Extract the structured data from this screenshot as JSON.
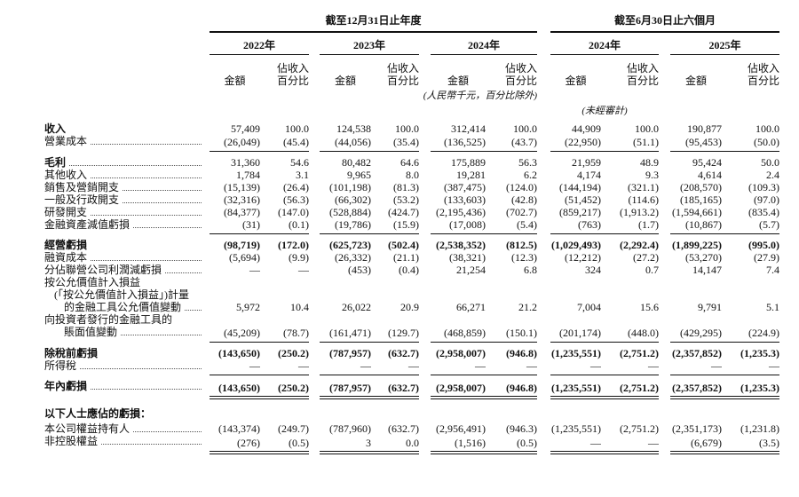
{
  "header": {
    "groups": [
      {
        "title": "截至12月31日止年度",
        "years": [
          "2022年",
          "2023年",
          "2024年"
        ]
      },
      {
        "title": "截至6月30日止六個月",
        "years": [
          "2024年",
          "2025年"
        ]
      }
    ],
    "amount_label": "金額",
    "pct_label": "佔收入\n百分比",
    "unit_note": "(人民幣千元，百分比除外)",
    "unaudited_note": "(未經審計)"
  },
  "table": {
    "columns": [
      "fy2022-amount",
      "fy2022-pct",
      "fy2023-amount",
      "fy2023-pct",
      "fy2024-amount",
      "fy2024-pct",
      "h1-2024-amount",
      "h1-2024-pct",
      "h1-2025-amount",
      "h1-2025-pct"
    ],
    "rows": [
      {
        "id": "revenue",
        "label": "收入",
        "label_indent": 0,
        "pre_lines": [],
        "leader": false,
        "label_bold": true,
        "values_bold": false,
        "underline": "none",
        "gap": 6,
        "values": [
          "57,409",
          "100.0",
          "124,538",
          "100.0",
          "312,414",
          "100.0",
          "44,909",
          "100.0",
          "190,877",
          "100.0"
        ]
      },
      {
        "id": "cost-of-sales",
        "label": "營業成本",
        "label_indent": 0,
        "pre_lines": [],
        "leader": true,
        "label_bold": false,
        "values_bold": false,
        "underline": "single",
        "gap": 0,
        "values": [
          "(26,049)",
          "(45.4)",
          "(44,056)",
          "(35.4)",
          "(136,525)",
          "(43.7)",
          "(22,950)",
          "(51.1)",
          "(95,453)",
          "(50.0)"
        ]
      },
      {
        "id": "gross-profit",
        "label": "毛利",
        "label_indent": 0,
        "pre_lines": [],
        "leader": true,
        "label_bold": true,
        "values_bold": false,
        "underline": "none",
        "gap": 5,
        "values": [
          "31,360",
          "54.6",
          "80,482",
          "64.6",
          "175,889",
          "56.3",
          "21,959",
          "48.9",
          "95,424",
          "50.0"
        ]
      },
      {
        "id": "other-income",
        "label": "其他收入",
        "label_indent": 0,
        "pre_lines": [],
        "leader": true,
        "label_bold": false,
        "values_bold": false,
        "underline": "none",
        "gap": 0,
        "values": [
          "1,784",
          "3.1",
          "9,965",
          "8.0",
          "19,281",
          "6.2",
          "4,174",
          "9.3",
          "4,614",
          "2.4"
        ]
      },
      {
        "id": "selling-marketing-expenses",
        "label": "銷售及營銷開支",
        "label_indent": 0,
        "pre_lines": [],
        "leader": true,
        "label_bold": false,
        "values_bold": false,
        "underline": "none",
        "gap": 0,
        "values": [
          "(15,139)",
          "(26.4)",
          "(101,198)",
          "(81.3)",
          "(387,475)",
          "(124.0)",
          "(144,194)",
          "(321.1)",
          "(208,570)",
          "(109.3)"
        ]
      },
      {
        "id": "general-admin-expenses",
        "label": "一般及行政開支",
        "label_indent": 0,
        "pre_lines": [],
        "leader": true,
        "label_bold": false,
        "values_bold": false,
        "underline": "none",
        "gap": 0,
        "values": [
          "(32,316)",
          "(56.3)",
          "(66,302)",
          "(53.2)",
          "(133,603)",
          "(42.8)",
          "(51,452)",
          "(114.6)",
          "(185,165)",
          "(97.0)"
        ]
      },
      {
        "id": "rd-expenses",
        "label": "研發開支",
        "label_indent": 0,
        "pre_lines": [],
        "leader": true,
        "label_bold": false,
        "values_bold": false,
        "underline": "none",
        "gap": 0,
        "values": [
          "(84,377)",
          "(147.0)",
          "(528,884)",
          "(424.7)",
          "(2,195,436)",
          "(702.7)",
          "(859,217)",
          "(1,913.2)",
          "(1,594,661)",
          "(835.4)"
        ]
      },
      {
        "id": "impairment-losses-financial-assets",
        "label": "金融資產減值虧損",
        "label_indent": 0,
        "pre_lines": [],
        "leader": true,
        "label_bold": false,
        "values_bold": false,
        "underline": "single",
        "gap": 0,
        "values": [
          "(31)",
          "(0.1)",
          "(19,786)",
          "(15.9)",
          "(17,008)",
          "(5.4)",
          "(763)",
          "(1.7)",
          "(10,867)",
          "(5.7)"
        ]
      },
      {
        "id": "operating-loss",
        "label": "經營虧損",
        "label_indent": 0,
        "pre_lines": [],
        "leader": false,
        "label_bold": true,
        "values_bold": true,
        "underline": "none",
        "gap": 5,
        "values": [
          "(98,719)",
          "(172.0)",
          "(625,723)",
          "(502.4)",
          "(2,538,352)",
          "(812.5)",
          "(1,029,493)",
          "(2,292.4)",
          "(1,899,225)",
          "(995.0)"
        ]
      },
      {
        "id": "finance-costs",
        "label": "融資成本",
        "label_indent": 0,
        "pre_lines": [],
        "leader": true,
        "label_bold": false,
        "values_bold": false,
        "underline": "none",
        "gap": 0,
        "values": [
          "(5,694)",
          "(9.9)",
          "(26,332)",
          "(21.1)",
          "(38,321)",
          "(12.3)",
          "(12,212)",
          "(27.2)",
          "(53,270)",
          "(27.9)"
        ]
      },
      {
        "id": "share-of-associates",
        "label": "分佔聯營公司利潤減虧損",
        "label_indent": 0,
        "pre_lines": [],
        "leader": true,
        "label_bold": false,
        "values_bold": false,
        "underline": "none",
        "gap": 0,
        "values": [
          "—",
          "—",
          "(453)",
          "(0.4)",
          "21,254",
          "6.8",
          "324",
          "0.7",
          "14,147",
          "7.4"
        ]
      },
      {
        "id": "fvtpl-instruments-fair-value-change",
        "label": "的金融工具公允價值變動",
        "label_indent": 2,
        "pre_lines": [
          {
            "text": "按公允價值計入損益",
            "indent": 0
          },
          {
            "text": "(「按公允價值計入損益」)計量",
            "indent": 1
          }
        ],
        "leader": true,
        "label_bold": false,
        "values_bold": false,
        "underline": "none",
        "gap": 0,
        "values": [
          "5,972",
          "10.4",
          "26,022",
          "20.9",
          "66,271",
          "21.2",
          "7,004",
          "15.6",
          "9,791",
          "5.1"
        ]
      },
      {
        "id": "instruments-issued-to-investors-carrying-change",
        "label": "賬面值變動",
        "label_indent": 2,
        "pre_lines": [
          {
            "text": "向投資者發行的金融工具的",
            "indent": 0
          }
        ],
        "leader": true,
        "label_bold": false,
        "values_bold": false,
        "underline": "single",
        "gap": 0,
        "values": [
          "(45,209)",
          "(78.7)",
          "(161,471)",
          "(129.7)",
          "(468,859)",
          "(150.1)",
          "(201,174)",
          "(448.0)",
          "(429,295)",
          "(224.9)"
        ]
      },
      {
        "id": "loss-before-tax",
        "label": "除稅前虧損",
        "label_indent": 0,
        "pre_lines": [],
        "leader": false,
        "label_bold": true,
        "values_bold": true,
        "underline": "none",
        "gap": 5,
        "values": [
          "(143,650)",
          "(250.2)",
          "(787,957)",
          "(632.7)",
          "(2,958,007)",
          "(946.8)",
          "(1,235,551)",
          "(2,751.2)",
          "(2,357,852)",
          "(1,235.3)"
        ]
      },
      {
        "id": "income-tax",
        "label": "所得稅",
        "label_indent": 0,
        "pre_lines": [],
        "leader": true,
        "label_bold": false,
        "values_bold": false,
        "underline": "single",
        "gap": 0,
        "values": [
          "—",
          "—",
          "—",
          "—",
          "—",
          "—",
          "—",
          "—",
          "—",
          "—"
        ]
      },
      {
        "id": "loss-for-the-year",
        "label": "年內虧損",
        "label_indent": 0,
        "pre_lines": [],
        "leader": true,
        "label_bold": true,
        "values_bold": true,
        "underline": "double",
        "gap": 5,
        "values": [
          "(143,650)",
          "(250.2)",
          "(787,957)",
          "(632.7)",
          "(2,958,007)",
          "(946.8)",
          "(1,235,551)",
          "(2,751.2)",
          "(2,357,852)",
          "(1,235.3)"
        ]
      },
      {
        "id": "attributable-header",
        "label": "以下人士應佔的虧損：",
        "label_indent": 0,
        "pre_lines": [],
        "leader": false,
        "label_bold": true,
        "values_bold": false,
        "underline": "none",
        "gap": 11,
        "values": [
          "",
          "",
          "",
          "",
          "",
          "",
          "",
          "",
          "",
          ""
        ]
      },
      {
        "id": "equity-holders",
        "label": "本公司權益持有人",
        "label_indent": 0,
        "pre_lines": [],
        "leader": true,
        "label_bold": false,
        "values_bold": false,
        "underline": "none",
        "gap": 3,
        "values": [
          "(143,374)",
          "(249.7)",
          "(787,960)",
          "(632.7)",
          "(2,956,491)",
          "(946.3)",
          "(1,235,551)",
          "(2,751.2)",
          "(2,351,173)",
          "(1,231.8)"
        ]
      },
      {
        "id": "non-controlling-interests",
        "label": "非控股權益",
        "label_indent": 0,
        "pre_lines": [],
        "leader": true,
        "label_bold": false,
        "values_bold": false,
        "underline": "double",
        "gap": 0,
        "values": [
          "(276)",
          "(0.5)",
          "3",
          "0.0",
          "(1,516)",
          "(0.5)",
          "—",
          "—",
          "(6,679)",
          "(3.5)"
        ]
      }
    ]
  }
}
